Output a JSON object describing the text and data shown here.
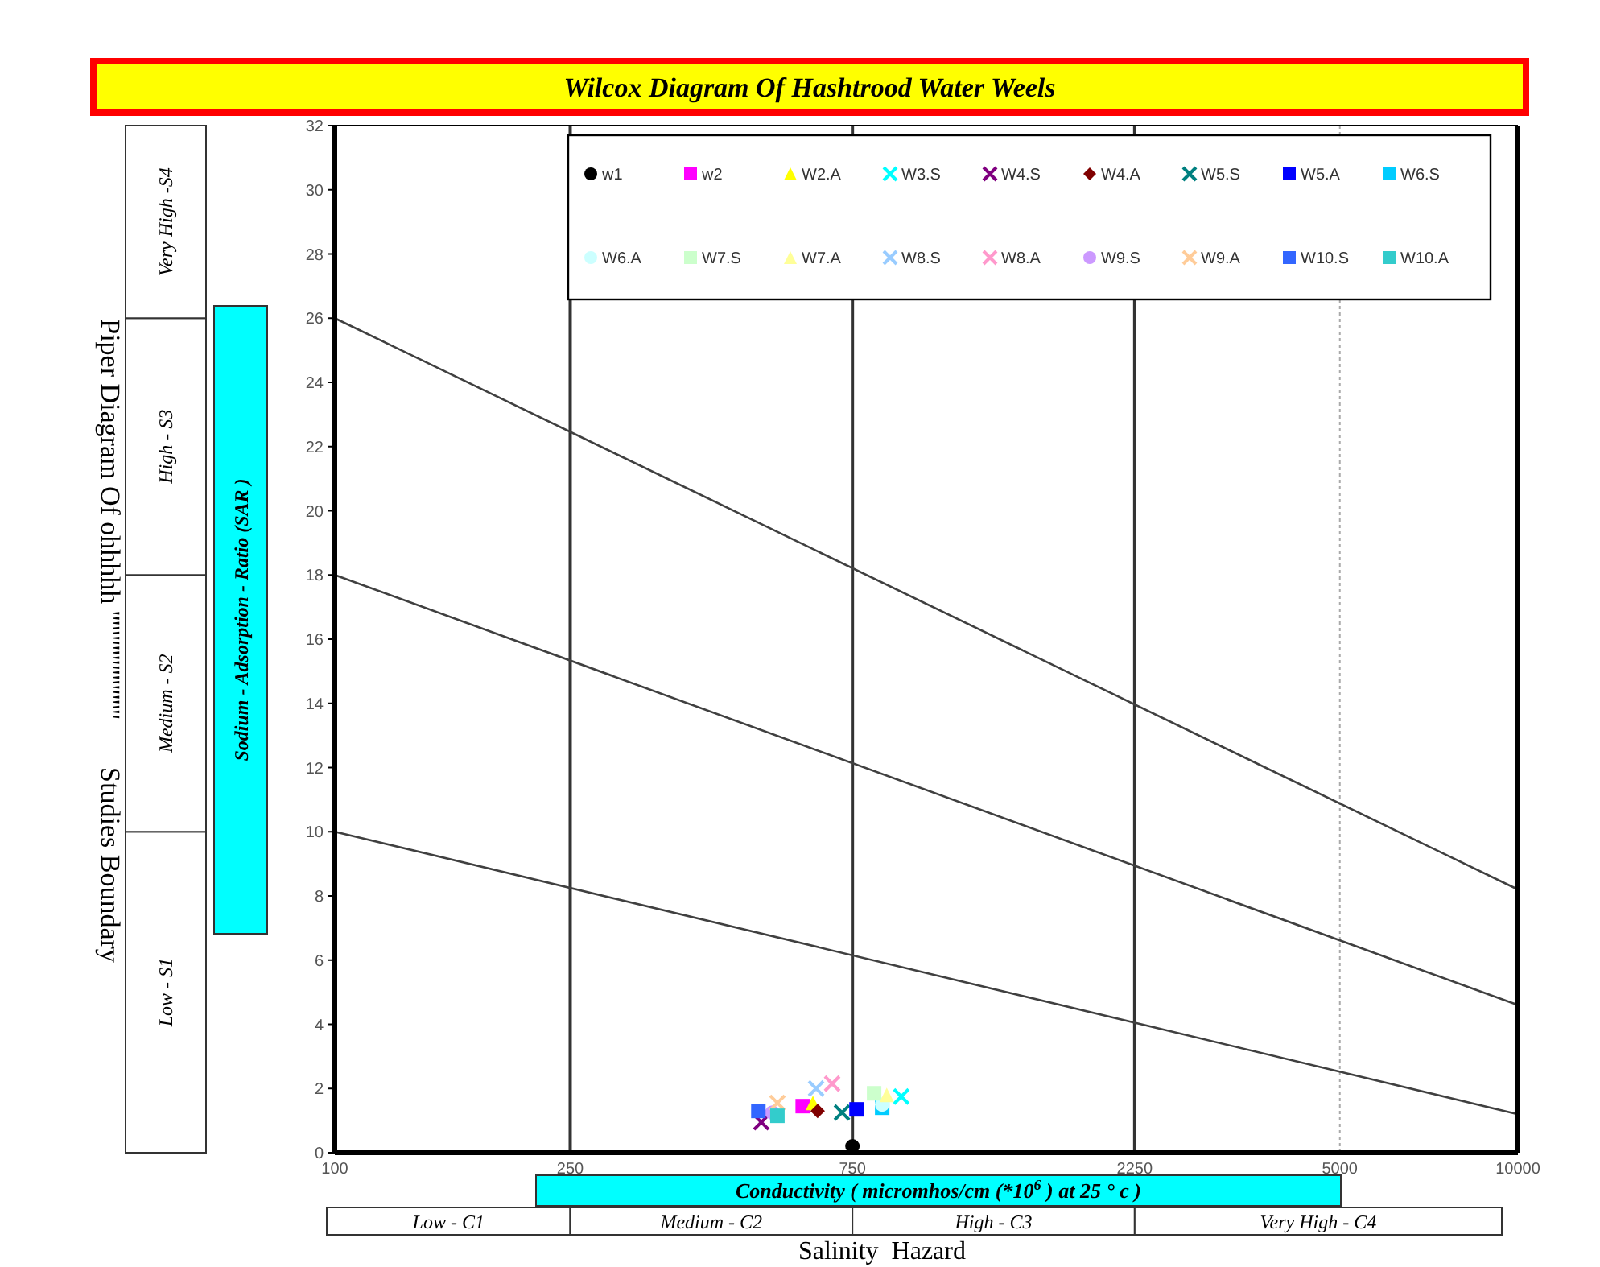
{
  "chart_data": {
    "type": "scatter",
    "title": "Wilcox Diagram Of Hashtrood Water Weels",
    "xlabel": "Conductivity ( micromhos/cm (*10$^{6}$ ) at 25 ° c )",
    "ylabel": "Sodium - Adsorption - Ratio (SAR )",
    "log": "x",
    "xlim": [
      100,
      10000
    ],
    "xticks": [
      100,
      250,
      750,
      2250,
      5000,
      10000
    ],
    "ylim": [
      0,
      32
    ],
    "yticks": [
      0,
      2,
      4,
      6,
      8,
      10,
      12,
      14,
      16,
      18,
      20,
      22,
      24,
      26,
      28,
      30,
      32
    ],
    "legend": "top right",
    "annotations": [
      "Low - C1",
      "Medium - C2",
      "High - C3",
      "Very High - C4",
      "Low - S1",
      "Medium - S2",
      "High - S3",
      "Very High -S4",
      "Salinity  Hazard",
      "Piper Diagram Of ohhhhh ''''''''''''''''''''''       Studies Boundary"
    ],
    "ref_lines": [
      {
        "axis": "x",
        "value": 250,
        "color": "#333333"
      },
      {
        "axis": "x",
        "value": 750,
        "color": "#333333"
      },
      {
        "axis": "x",
        "value": 2250,
        "color": "#333333"
      },
      {
        "axis": "x",
        "value": 5000,
        "color": "#aaaaaa",
        "line_style": "dotted"
      }
    ],
    "series": [
      {
        "type": "line",
        "color": "#404040",
        "x": [
          100,
          10000
        ],
        "values": [
          26,
          8.2
        ]
      },
      {
        "type": "line",
        "color": "#404040",
        "x": [
          100,
          10000
        ],
        "values": [
          18,
          4.6
        ]
      },
      {
        "type": "line",
        "color": "#404040",
        "x": [
          100,
          10000
        ],
        "values": [
          10,
          1.2
        ]
      },
      {
        "name": "w1",
        "color": "#000000",
        "marker": "circle",
        "x": [
          750
        ],
        "values": [
          0.2
        ]
      },
      {
        "name": "w2",
        "color": "#ff00ff",
        "marker": "square",
        "x": [
          618
        ],
        "values": [
          1.45
        ]
      },
      {
        "name": "W2.A",
        "color": "#ffff00",
        "marker": "triangle",
        "x": [
          643
        ],
        "values": [
          1.55
        ]
      },
      {
        "name": "W3.S",
        "color": "#00ffff",
        "marker": "cross",
        "x": [
          907
        ],
        "values": [
          1.75
        ]
      },
      {
        "name": "W4.S",
        "color": "#800080",
        "marker": "cross",
        "x": [
          526
        ],
        "values": [
          0.95
        ]
      },
      {
        "name": "W4.A",
        "color": "#800000",
        "marker": "diamond",
        "x": [
          655
        ],
        "values": [
          1.3
        ]
      },
      {
        "name": "W5.S",
        "color": "#008080",
        "marker": "cross",
        "x": [
          720
        ],
        "values": [
          1.25
        ]
      },
      {
        "name": "W5.A",
        "color": "#0000ff",
        "marker": "square",
        "x": [
          762
        ],
        "values": [
          1.35
        ]
      },
      {
        "name": "W6.S",
        "color": "#00ccff",
        "marker": "square",
        "x": [
          842
        ],
        "values": [
          1.4
        ]
      },
      {
        "name": "W6.A",
        "color": "#ccffff",
        "marker": "circle",
        "x": [
          842
        ],
        "values": [
          1.5
        ]
      },
      {
        "name": "W7.S",
        "color": "#ccffcc",
        "marker": "square",
        "x": [
          816
        ],
        "values": [
          1.85
        ]
      },
      {
        "name": "W7.A",
        "color": "#ffff99",
        "marker": "triangle",
        "x": [
          857
        ],
        "values": [
          1.8
        ]
      },
      {
        "name": "W8.S",
        "color": "#99ccff",
        "marker": "cross",
        "x": [
          651
        ],
        "values": [
          2.0
        ]
      },
      {
        "name": "W8.A",
        "color": "#ff99cc",
        "marker": "cross",
        "x": [
          693
        ],
        "values": [
          2.15
        ]
      },
      {
        "name": "W9.S",
        "color": "#cc99ff",
        "marker": "circle",
        "x": [
          549
        ],
        "values": [
          1.25
        ]
      },
      {
        "name": "W9.A",
        "color": "#ffcc99",
        "marker": "cross",
        "x": [
          560
        ],
        "values": [
          1.55
        ]
      },
      {
        "name": "W10.S",
        "color": "#3366ff",
        "marker": "square",
        "x": [
          520
        ],
        "values": [
          1.3
        ]
      },
      {
        "name": "W10.A",
        "color": "#33cccc",
        "marker": "square",
        "x": [
          560
        ],
        "values": [
          1.15
        ]
      }
    ]
  }
}
